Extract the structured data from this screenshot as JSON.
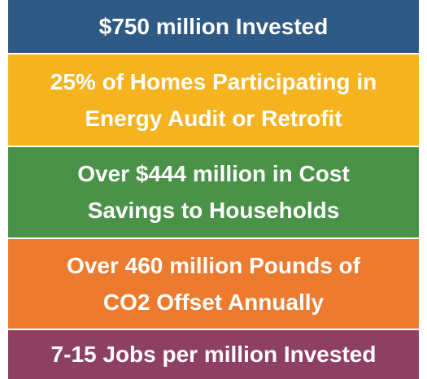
{
  "items": [
    {
      "lines": [
        "$750 million Invested"
      ]
    },
    {
      "lines": [
        "25% of Homes Participating in",
        "Energy Audit or Retrofit"
      ]
    },
    {
      "lines": [
        "Over $444 million in Cost",
        "Savings to Households"
      ]
    },
    {
      "lines": [
        "Over 460 million Pounds of",
        "CO2 Offset Annually"
      ]
    },
    {
      "lines": [
        "7-15 Jobs per million Invested"
      ]
    }
  ]
}
